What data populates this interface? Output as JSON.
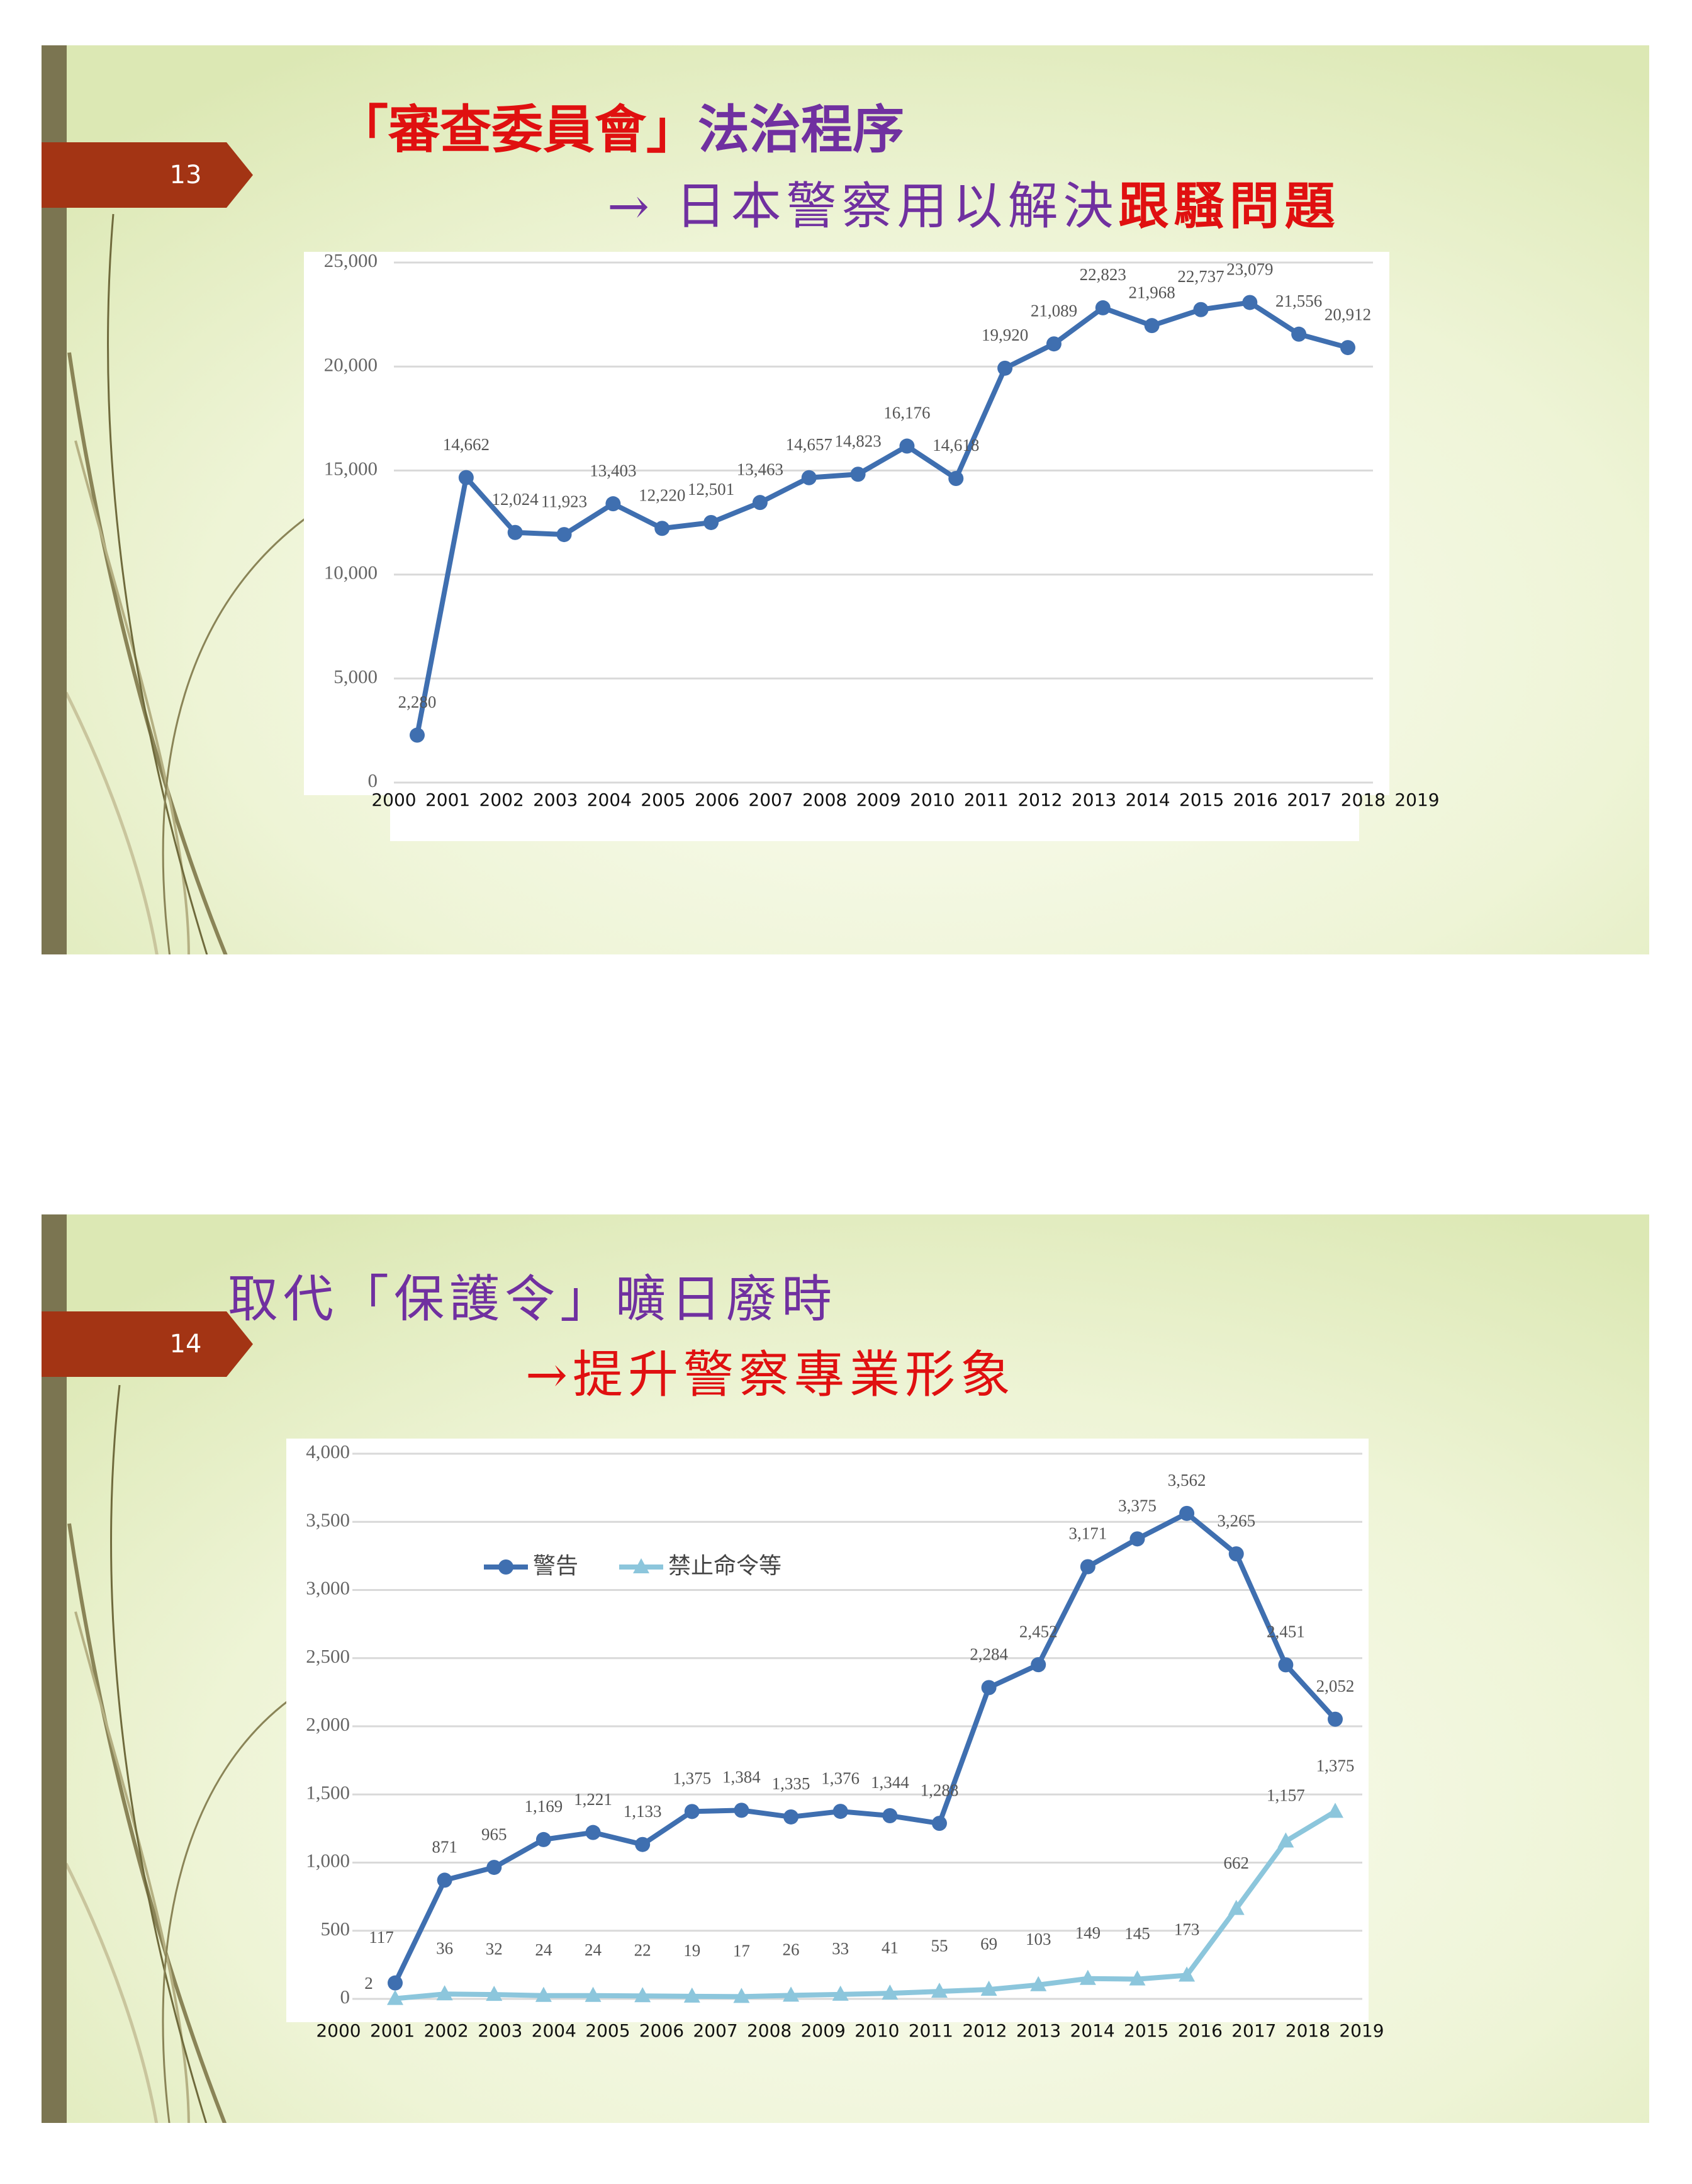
{
  "slides": [
    {
      "number": "13",
      "title_parts": [
        "「審查委員會」",
        "法治程序"
      ],
      "subtitle_parts": [
        "→ 日本警察用以解決",
        "跟騷問題"
      ]
    },
    {
      "number": "14",
      "title": "取代「保護令」曠日廢時",
      "subtitle": "→提升警察專業形象"
    }
  ],
  "chart_data": [
    {
      "type": "line",
      "categories": [
        "2000",
        "2001",
        "2002",
        "2003",
        "2004",
        "2005",
        "2006",
        "2007",
        "2008",
        "2009",
        "2010",
        "2011",
        "2012",
        "2013",
        "2014",
        "2015",
        "2016",
        "2017",
        "2018",
        "2019"
      ],
      "values": [
        2280,
        14662,
        12024,
        11923,
        13403,
        12220,
        12501,
        13463,
        14657,
        14823,
        16176,
        14618,
        19920,
        21089,
        22823,
        21968,
        22737,
        23079,
        21556,
        20912
      ],
      "value_labels": [
        "2,280",
        "14,662",
        "12,024",
        "11,923",
        "13,403",
        "12,220",
        "12,501",
        "13,463",
        "14,657",
        "14,823",
        "16,176",
        "14,618",
        "19,920",
        "21,089",
        "22,823",
        "21,968",
        "22,737",
        "23,079",
        "21,556",
        "20,912"
      ],
      "color": "#3f6fb0",
      "marker": "circle",
      "ylim": [
        0,
        25000
      ],
      "yticks": [
        0,
        {
          "value": 5000,
          "label": "5,000"
        },
        {
          "value": 10000,
          "label": "10,000"
        },
        {
          "value": 15000,
          "label": "15,000"
        },
        {
          "value": 20000,
          "label": "20,000"
        },
        {
          "value": 25000,
          "label": "25,000"
        }
      ],
      "grid": true
    },
    {
      "type": "line",
      "categories": [
        "2000",
        "2001",
        "2002",
        "2003",
        "2004",
        "2005",
        "2006",
        "2007",
        "2008",
        "2009",
        "2010",
        "2011",
        "2012",
        "2013",
        "2014",
        "2015",
        "2016",
        "2017",
        "2018",
        "2019"
      ],
      "series": [
        {
          "name": "警告",
          "color": "#3f6fb0",
          "marker": "circle",
          "values": [
            117,
            871,
            965,
            1169,
            1221,
            1133,
            1375,
            1384,
            1335,
            1376,
            1344,
            1288,
            2284,
            2452,
            3171,
            3375,
            3562,
            3265,
            2451,
            2052
          ],
          "value_labels": [
            "117",
            "871",
            "965",
            "1,169",
            "1,221",
            "1,133",
            "1,375",
            "1,384",
            "1,335",
            "1,376",
            "1,344",
            "1,288",
            "2,284",
            "2,452",
            "3,171",
            "3,375",
            "3,562",
            "3,265",
            "2,451",
            "2,052"
          ]
        },
        {
          "name": "禁止命令等",
          "color": "#8cc6dc",
          "marker": "triangle",
          "values": [
            2,
            36,
            32,
            24,
            24,
            22,
            19,
            17,
            26,
            33,
            41,
            55,
            69,
            103,
            149,
            145,
            173,
            662,
            1157,
            1375
          ],
          "value_labels": [
            "2",
            "36",
            "32",
            "24",
            "24",
            "22",
            "19",
            "17",
            "26",
            "33",
            "41",
            "55",
            "69",
            "103",
            "149",
            "145",
            "173",
            "662",
            "1,157",
            "1,375"
          ]
        }
      ],
      "ylim": [
        0,
        4000
      ],
      "yticks": [
        0,
        500,
        {
          "value": 1000,
          "label": "1,000"
        },
        {
          "value": 1500,
          "label": "1,500"
        },
        {
          "value": 2000,
          "label": "2,000"
        },
        {
          "value": 2500,
          "label": "2,500"
        },
        {
          "value": 3000,
          "label": "3,000"
        },
        {
          "value": 3500,
          "label": "3,500"
        },
        {
          "value": 4000,
          "label": "4,000"
        }
      ],
      "grid": true,
      "legend": "top-left"
    }
  ]
}
